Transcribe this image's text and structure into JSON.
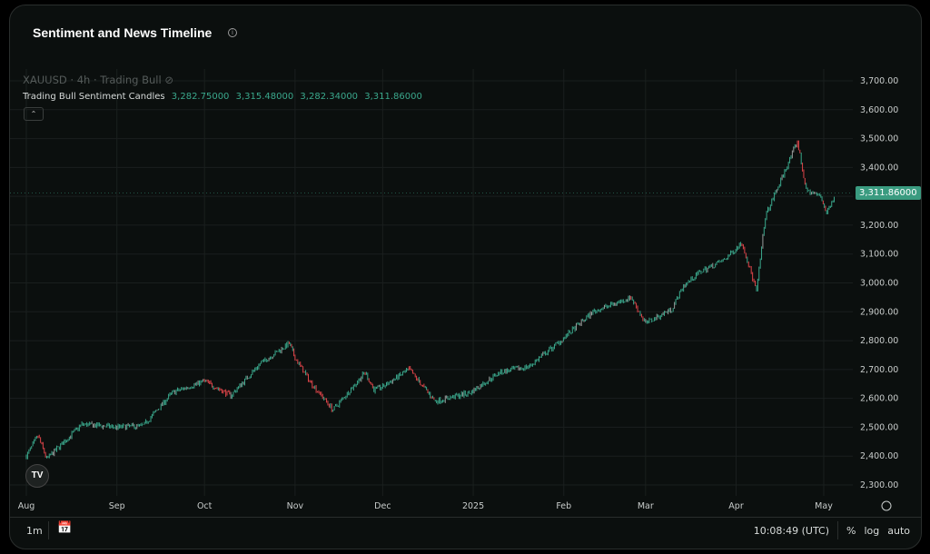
{
  "header": {
    "title": "Sentiment and News Timeline",
    "info_icon": "info-icon"
  },
  "legend": {
    "symbol_line": "XAUUSD · 4h · Trading Bull",
    "indicator": "Trading Bull Sentiment Candles",
    "open": "3,282.75000",
    "high": "3,315.48000",
    "low": "3,282.34000",
    "close": "3,311.86000"
  },
  "last_price_tag": "3,311.86000",
  "footer": {
    "range": "1m",
    "time": "10:08:49 (UTC)",
    "percent": "%",
    "log": "log",
    "auto": "auto"
  },
  "colors": {
    "up": "#3aa88c",
    "down": "#e0454a",
    "neutral": "#9a9e9d",
    "tag": "#3a9b80"
  },
  "chart_data": {
    "type": "candlestick",
    "symbol": "XAUUSD",
    "interval": "4h",
    "y_ticks": [
      "2,300.00",
      "2,400.00",
      "2,500.00",
      "2,600.00",
      "2,700.00",
      "2,800.00",
      "2,900.00",
      "3,000.00",
      "3,100.00",
      "3,200.00",
      "3,300.00",
      "3,400.00",
      "3,500.00",
      "3,600.00",
      "3,700.00"
    ],
    "ylim": [
      2300,
      3700
    ],
    "x_ticks": [
      "Aug",
      "Sep",
      "Oct",
      "Nov",
      "Dec",
      "2025",
      "Feb",
      "Mar",
      "Apr",
      "May"
    ],
    "grid": true,
    "approx_closes": [
      [
        "2024-08-01",
        2400
      ],
      [
        "2024-08-05",
        2470
      ],
      [
        "2024-08-08",
        2390
      ],
      [
        "2024-08-20",
        2510
      ],
      [
        "2024-09-01",
        2500
      ],
      [
        "2024-09-10",
        2505
      ],
      [
        "2024-09-20",
        2620
      ],
      [
        "2024-10-01",
        2660
      ],
      [
        "2024-10-10",
        2610
      ],
      [
        "2024-10-20",
        2720
      ],
      [
        "2024-10-30",
        2790
      ],
      [
        "2024-11-01",
        2740
      ],
      [
        "2024-11-06",
        2660
      ],
      [
        "2024-11-14",
        2560
      ],
      [
        "2024-11-25",
        2690
      ],
      [
        "2024-11-28",
        2630
      ],
      [
        "2024-12-01",
        2640
      ],
      [
        "2024-12-10",
        2700
      ],
      [
        "2024-12-19",
        2590
      ],
      [
        "2024-12-31",
        2620
      ],
      [
        "2025-01-10",
        2690
      ],
      [
        "2025-01-20",
        2710
      ],
      [
        "2025-01-31",
        2800
      ],
      [
        "2025-02-11",
        2900
      ],
      [
        "2025-02-24",
        2950
      ],
      [
        "2025-03-01",
        2860
      ],
      [
        "2025-03-10",
        2910
      ],
      [
        "2025-03-14",
        2990
      ],
      [
        "2025-03-20",
        3040
      ],
      [
        "2025-03-28",
        3080
      ],
      [
        "2025-04-03",
        3140
      ],
      [
        "2025-04-08",
        2970
      ],
      [
        "2025-04-11",
        3230
      ],
      [
        "2025-04-22",
        3490
      ],
      [
        "2025-04-25",
        3320
      ],
      [
        "2025-04-30",
        3300
      ],
      [
        "2025-05-02",
        3240
      ],
      [
        "2025-05-05",
        3311.86
      ]
    ]
  }
}
